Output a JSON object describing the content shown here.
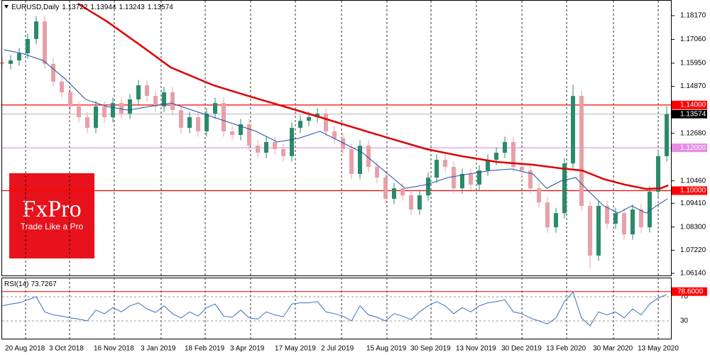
{
  "chart_data": {
    "type": "candlestick",
    "title": "EURUSD,Daily",
    "header_values": [
      1.13722,
      1.13944,
      1.13243,
      1.13574
    ],
    "up_color": "#2a8a6a",
    "down_color": "#e8a0a8",
    "open": [
      1.16,
      1.1592,
      1.1608,
      1.1641,
      1.1708,
      1.179,
      1.1592,
      1.1509,
      1.1459,
      1.1393,
      1.1343,
      1.1293,
      1.1393,
      1.1343,
      1.1409,
      1.136,
      1.1426,
      1.1492,
      1.1442,
      1.1393,
      1.1459,
      1.1376,
      1.1293,
      1.1343,
      1.1277,
      1.136,
      1.1409,
      1.1277,
      1.126,
      1.131,
      1.121,
      1.1177,
      1.1227,
      1.1194,
      1.1161,
      1.1293,
      1.1326,
      1.1343,
      1.136,
      1.1277,
      1.1244,
      1.1194,
      1.1078,
      1.121,
      1.1111,
      1.1061,
      1.0962,
      1.1011,
      1.0978,
      1.0912,
      1.0978,
      1.1061,
      1.1144,
      1.1111,
      1.1011,
      1.1078,
      1.1028,
      1.1094,
      1.1144,
      1.1177,
      1.1227,
      1.1111,
      1.1094,
      1.1011,
      1.0945,
      1.0829,
      1.0895,
      1.1127,
      1.1442,
      1.0929,
      1.0697,
      1.0929,
      1.0846,
      1.0895,
      1.0796,
      1.0912,
      1.0829,
      1.0995,
      1.1161
    ],
    "high": [
      1.1625,
      1.1633,
      1.1666,
      1.1733,
      1.1815,
      1.1815,
      1.1617,
      1.1534,
      1.1484,
      1.1418,
      1.1368,
      1.1418,
      1.1418,
      1.1434,
      1.1434,
      1.1451,
      1.1517,
      1.1517,
      1.1467,
      1.1484,
      1.1484,
      1.1401,
      1.1368,
      1.1368,
      1.1385,
      1.1434,
      1.1434,
      1.1302,
      1.1335,
      1.1335,
      1.1235,
      1.1252,
      1.1252,
      1.1219,
      1.1318,
      1.1351,
      1.1368,
      1.1385,
      1.1385,
      1.1302,
      1.1269,
      1.1219,
      1.1235,
      1.1235,
      1.1136,
      1.1086,
      1.1036,
      1.1036,
      1.1003,
      1.1003,
      1.1086,
      1.1169,
      1.1169,
      1.1136,
      1.1103,
      1.1103,
      1.1119,
      1.1169,
      1.1202,
      1.1252,
      1.1252,
      1.1136,
      1.1119,
      1.1036,
      1.097,
      1.092,
      1.1152,
      1.1495,
      1.1467,
      1.0954,
      1.0954,
      1.0954,
      1.092,
      1.092,
      1.0937,
      1.0937,
      1.102,
      1.1186,
      1.1394
    ],
    "low": [
      1.1567,
      1.1567,
      1.1583,
      1.1616,
      1.1683,
      1.1567,
      1.1484,
      1.1434,
      1.1368,
      1.1318,
      1.1268,
      1.1268,
      1.1318,
      1.1318,
      1.1335,
      1.1335,
      1.1401,
      1.1417,
      1.1368,
      1.1368,
      1.1351,
      1.1268,
      1.1268,
      1.1252,
      1.1252,
      1.1335,
      1.1252,
      1.1235,
      1.1235,
      1.1185,
      1.1152,
      1.1152,
      1.1169,
      1.1136,
      1.1136,
      1.1268,
      1.1301,
      1.1318,
      1.1252,
      1.1219,
      1.1169,
      1.1053,
      1.1053,
      1.1086,
      1.1036,
      1.0937,
      1.0937,
      1.0953,
      1.0887,
      1.0887,
      1.0953,
      1.1036,
      1.1086,
      1.0986,
      1.0986,
      1.1003,
      1.1003,
      1.1069,
      1.1119,
      1.1152,
      1.1086,
      1.1069,
      1.0986,
      1.092,
      1.0804,
      1.0804,
      1.087,
      1.1102,
      1.0904,
      1.064,
      1.0672,
      1.0821,
      1.0821,
      1.0771,
      1.0771,
      1.0804,
      1.0804,
      1.097,
      1.1136
    ],
    "close": [
      1.1592,
      1.1608,
      1.1641,
      1.1708,
      1.179,
      1.1592,
      1.1509,
      1.1459,
      1.1393,
      1.1343,
      1.1293,
      1.1393,
      1.1343,
      1.1409,
      1.136,
      1.1426,
      1.1492,
      1.1442,
      1.1393,
      1.1459,
      1.1376,
      1.1293,
      1.1343,
      1.1277,
      1.136,
      1.1409,
      1.1277,
      1.126,
      1.131,
      1.121,
      1.1177,
      1.1227,
      1.1194,
      1.1161,
      1.1293,
      1.1326,
      1.1343,
      1.136,
      1.1277,
      1.1244,
      1.1194,
      1.1078,
      1.121,
      1.1111,
      1.1061,
      1.0962,
      1.1011,
      1.0978,
      1.0912,
      1.0978,
      1.1061,
      1.1144,
      1.1111,
      1.1011,
      1.1078,
      1.1028,
      1.1094,
      1.1144,
      1.1177,
      1.1227,
      1.1111,
      1.1094,
      1.1011,
      1.0945,
      1.0829,
      1.0895,
      1.1127,
      1.1442,
      1.0929,
      1.0697,
      1.0929,
      1.0846,
      1.0895,
      1.0796,
      1.0912,
      1.0829,
      1.0995,
      1.1161,
      1.1357
    ],
    "xlim": [
      0,
      78.33
    ],
    "xticks": [
      {
        "value": 0.17,
        "label": "20 Aug 2018"
      },
      {
        "value": 5.33,
        "label": "3 Oct 2018"
      },
      {
        "value": 10.58,
        "label": "16 Nov 2018"
      },
      {
        "value": 16.08,
        "label": "3 Jan 2019"
      },
      {
        "value": 21.25,
        "label": "18 Feb 2019"
      },
      {
        "value": 26.58,
        "label": "3 Apr 2019"
      },
      {
        "value": 31.83,
        "label": "17 May 2019"
      },
      {
        "value": 37.25,
        "label": "2 Jul 2019"
      },
      {
        "value": 42.58,
        "label": "15 Aug 2019"
      },
      {
        "value": 47.75,
        "label": "30 Sep 2019"
      },
      {
        "value": 53.08,
        "label": "13 Nov 2019"
      },
      {
        "value": 58.42,
        "label": "30 Dec 2019"
      },
      {
        "value": 63.67,
        "label": "13 Feb 2020"
      },
      {
        "value": 69.17,
        "label": "30 Mar 2020"
      },
      {
        "value": 74.42,
        "label": "13 May 2020"
      }
    ],
    "ylim": [
      1.0604,
      1.189
    ],
    "yticks": [
      {
        "value": 1.1817,
        "label": "1.18170"
      },
      {
        "value": 1.1706,
        "label": "1.17060"
      },
      {
        "value": 1.1595,
        "label": "1.15950"
      },
      {
        "value": 1.1487,
        "label": "1.14870"
      },
      {
        "value": 1.1268,
        "label": "1.12680"
      },
      {
        "value": 1.1046,
        "label": "1.10460"
      },
      {
        "value": 1.0941,
        "label": "1.09410"
      },
      {
        "value": 1.083,
        "label": "1.08300"
      },
      {
        "value": 1.0722,
        "label": "1.07220"
      },
      {
        "value": 1.0614,
        "label": "1.06140"
      }
    ],
    "lines": [
      {
        "color": "#e00000",
        "x": [
          8.9,
          12.3,
          16.4,
          19.8,
          24.8,
          28.9,
          33.1,
          37.3,
          41.4,
          45.6,
          49.8,
          53.9,
          58.1,
          62.3,
          65.6,
          68.1,
          70.6,
          73.1,
          75.6,
          77.3,
          78.2
        ],
        "values": [
          1.1873,
          1.179,
          1.1674,
          1.1575,
          1.1492,
          1.1442,
          1.1393,
          1.1343,
          1.1293,
          1.1243,
          1.1194,
          1.1161,
          1.1134,
          1.1121,
          1.1104,
          1.1094,
          1.1054,
          1.1028,
          1.1008,
          1.1011,
          1.1025
        ]
      },
      {
        "color": "#1f4fa0",
        "x": [
          0.2,
          2.3,
          4.8,
          7.3,
          9.8,
          12.3,
          14.8,
          17.3,
          19.8,
          22.3,
          24.8,
          27.3,
          29.8,
          32.3,
          34.8,
          37.3,
          39.8,
          42.3,
          44.8,
          47.3,
          49.8,
          52.3,
          54.8,
          57.3,
          59.8,
          62.3,
          63.9,
          65.6,
          67.3,
          68.9,
          70.6,
          72.3,
          73.9,
          75.6,
          76.8,
          78.1
        ],
        "values": [
          1.1658,
          1.1641,
          1.1608,
          1.1525,
          1.1426,
          1.1393,
          1.1376,
          1.1393,
          1.1409,
          1.1376,
          1.1343,
          1.131,
          1.1277,
          1.1227,
          1.1244,
          1.1277,
          1.1227,
          1.1177,
          1.1094,
          1.1011,
          1.1028,
          1.1061,
          1.1078,
          1.1094,
          1.1101,
          1.1078,
          1.1011,
          1.1045,
          1.1061,
          1.0995,
          1.0929,
          1.0895,
          1.0929,
          1.0895,
          1.0929,
          1.0962
        ]
      }
    ],
    "levels": [
      {
        "value": 1.14,
        "label": "1.14000",
        "color": "#ff0000"
      },
      {
        "value": 1.12,
        "label": "1.12000",
        "color": "#e58ce5"
      },
      {
        "value": 1.1,
        "label": "1.10000",
        "color": "#ff0000"
      }
    ],
    "last_price": 1.13574,
    "rsi": {
      "name": "RSI(14)",
      "color": "#3a6fc4",
      "ylim": [
        0,
        100
      ],
      "yticks": [
        70,
        30
      ],
      "level": {
        "value": 78.6,
        "label": "78.6000",
        "color": "#ff0000"
      },
      "values": [
        55,
        58,
        60,
        65,
        70,
        45,
        40,
        38,
        35,
        33,
        30,
        48,
        42,
        52,
        45,
        55,
        60,
        50,
        44,
        55,
        42,
        35,
        45,
        38,
        52,
        58,
        38,
        36,
        48,
        35,
        33,
        45,
        40,
        37,
        58,
        60,
        60,
        62,
        45,
        42,
        38,
        30,
        55,
        40,
        36,
        30,
        42,
        38,
        32,
        45,
        55,
        62,
        55,
        42,
        52,
        45,
        55,
        60,
        62,
        65,
        45,
        42,
        35,
        30,
        25,
        35,
        62,
        78,
        35,
        22,
        45,
        40,
        45,
        35,
        50,
        40,
        58,
        68,
        73.7267
      ]
    }
  },
  "watermark": {
    "brand": "FxPro",
    "tagline": "Trade Like a Pro"
  }
}
